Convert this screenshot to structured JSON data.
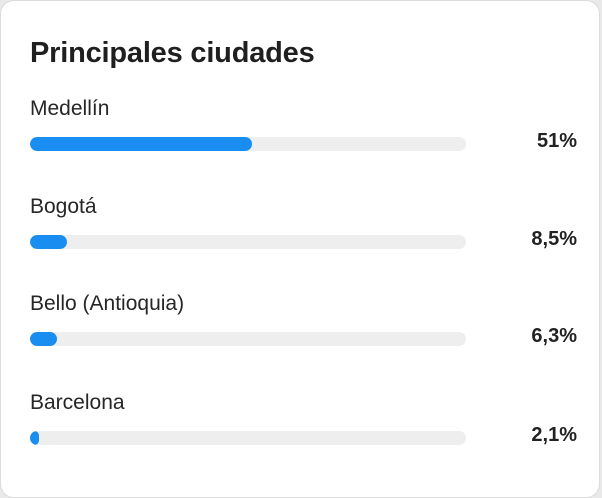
{
  "widget": {
    "title": "Principales ciudades",
    "accent_color": "#1a8ef0",
    "track_color": "#eeeeee"
  },
  "cities": [
    {
      "name": "Medellín",
      "percent_label": "51%",
      "fill_fraction": 0.51
    },
    {
      "name": "Bogotá",
      "percent_label": "8,5%",
      "fill_fraction": 0.085
    },
    {
      "name": "Bello (Antioquia)",
      "percent_label": "6,3%",
      "fill_fraction": 0.063
    },
    {
      "name": "Barcelona",
      "percent_label": "2,1%",
      "fill_fraction": 0.021
    }
  ]
}
